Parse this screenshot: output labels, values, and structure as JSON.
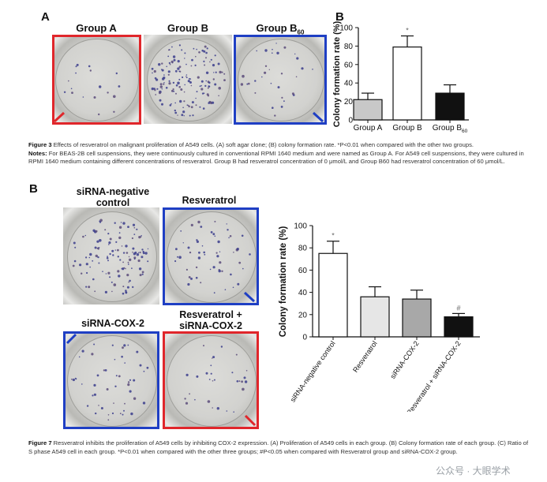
{
  "fig3": {
    "panel_a": "A",
    "panel_b": "B",
    "groups": {
      "a": "Group A",
      "b": "Group B",
      "b60_main": "Group B",
      "b60_sub": "60"
    },
    "caption": {
      "title": "Figure 3",
      "text": " Effects of resveratrol on malignant proliferation of A549 cells. (A) soft agar clone; (B) colony formation rate. *P<0.01 when compared with the other two groups.",
      "notes_label": "Notes:",
      "notes_text": " For BEAS-2B cell suspensions, they were continuously cultured in conventional RPMI 1640 medium and were named as Group A. For A549 cell suspensions, they were cultured in RPMI 1640 medium containing different concentrations of resveratrol. Group B had resveratrol concentration of 0 μmol/L and Group B60 had resveratrol concentration of 60 μmol/L."
    }
  },
  "fig7": {
    "panel_b": "B",
    "dish_labels": {
      "neg": "siRNA-negative control",
      "res": "Resveratrol",
      "cox": "siRNA-COX-2",
      "combo": "Resveratrol + siRNA-COX-2"
    },
    "caption": {
      "title": "Figure 7",
      "text": " Resveratrol inhibits the proliferation of A549 cells by inhibiting COX-2 expression. (A) Proliferation of A549 cells in each group. (B) Colony formation rate of each group. (C) Ratio of S phase A549 cell in each group. *P<0.01 when compared with the other three groups; #P<0.05 when compared with Resveratrol group and siRNA-COX-2 group."
    }
  },
  "watermark": "公众号 · 大眼学术",
  "chart_data": [
    {
      "type": "bar",
      "ylabel": "Colony formation rate (%)",
      "xlabel": "",
      "ylim": [
        0,
        100
      ],
      "yticks": [
        0,
        20,
        40,
        60,
        80,
        100
      ],
      "categories": [
        "Group A",
        "Group B",
        "Group B60"
      ],
      "values": [
        22,
        79,
        29
      ],
      "errors": [
        7,
        12,
        9
      ],
      "colors": [
        "#c8c8c8",
        "#ffffff",
        "#111111"
      ],
      "annotations": [
        "",
        "*",
        ""
      ]
    },
    {
      "type": "bar",
      "ylabel": "Colony formation rate (%)",
      "xlabel": "",
      "ylim": [
        0,
        100
      ],
      "yticks": [
        0,
        20,
        40,
        60,
        80,
        100
      ],
      "categories": [
        "siRNA-negative control",
        "Resveratrol",
        "siRNA-COX-2",
        "Resveratrol + siRNA-COX-2"
      ],
      "values": [
        75,
        36,
        34,
        18
      ],
      "errors": [
        11,
        9,
        8,
        3
      ],
      "colors": [
        "#ffffff",
        "#e6e6e6",
        "#a8a8a8",
        "#111111"
      ],
      "annotations": [
        "*",
        "",
        "",
        "#"
      ]
    }
  ]
}
